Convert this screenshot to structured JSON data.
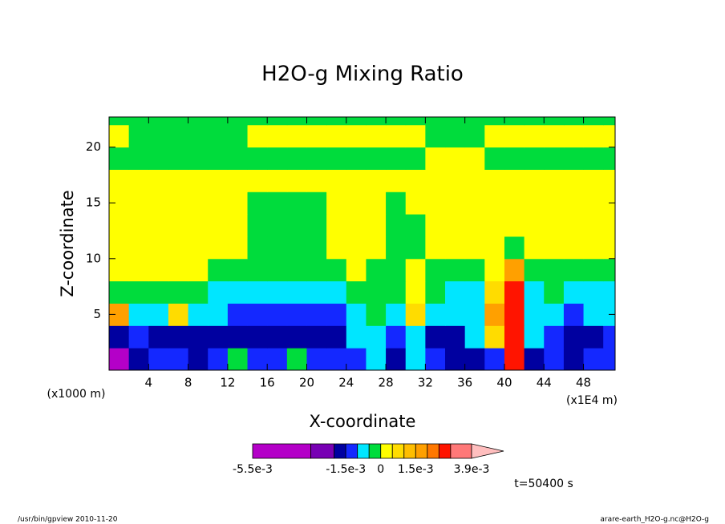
{
  "chart_data": {
    "type": "contour",
    "title": "H2O-g Mixing Ratio",
    "x_label": "X-coordinate",
    "y_label": "Z-coordinate",
    "x_unit": "(x1000 m)",
    "x_scale_note": "(x1E4 m)",
    "time_label": "t=50400 s",
    "footer_left": "/usr/bin/gpview  2010-11-20",
    "footer_right": "arare-earth_H2O-g.nc@H2O-g",
    "xlim": [
      0,
      51.2
    ],
    "ylim": [
      0,
      22.7
    ],
    "xticks": [
      4,
      8,
      12,
      16,
      20,
      24,
      28,
      32,
      36,
      40,
      44,
      48
    ],
    "yticks": [
      5,
      10,
      15,
      20
    ],
    "x": [
      1,
      3,
      5,
      7,
      9,
      11,
      13,
      15,
      17,
      19,
      21,
      23,
      25,
      27,
      29,
      31,
      33,
      35,
      37,
      39,
      41,
      43,
      45,
      47,
      49,
      51
    ],
    "z": [
      1,
      3,
      5,
      7,
      9,
      11,
      13,
      15,
      17,
      19,
      21,
      23
    ],
    "levels": [
      -0.0055,
      -0.003,
      -0.002,
      -0.0015,
      -0.001,
      -0.0005,
      0,
      0.0005,
      0.001,
      0.0015,
      0.002,
      0.0025,
      0.003,
      0.0039
    ],
    "colors": [
      "#b400c8",
      "#7800b4",
      "#0000a0",
      "#1428ff",
      "#00e6ff",
      "#00dc3c",
      "#ffff00",
      "#ffdc00",
      "#ffbe00",
      "#ffa000",
      "#ff7800",
      "#ff1400",
      "#ff7878",
      "#ffbebe"
    ],
    "colorbar_ticks": [
      {
        "value": -0.0055,
        "label": "-5.5e-3"
      },
      {
        "value": -0.0015,
        "label": "-1.5e-3"
      },
      0,
      {
        "value": 0.0015,
        "label": "1.5e-3"
      },
      {
        "value": 0.0039,
        "label": "3.9e-3"
      }
    ],
    "values": [
      [
        -0.004,
        -0.0017,
        -0.0012,
        -0.0012,
        -0.0017,
        -0.0012,
        -0.0002,
        -0.0012,
        -0.0012,
        -0.0002,
        -0.0012,
        -0.0012,
        -0.0012,
        -0.0007,
        -0.0017,
        -0.0007,
        -0.0012,
        -0.0017,
        -0.0017,
        -0.0012,
        0.0027,
        -0.0017,
        -0.0012,
        -0.0017,
        -0.0012,
        -0.0012
      ],
      [
        -0.0017,
        -0.0012,
        -0.0017,
        -0.0017,
        -0.0017,
        -0.0017,
        -0.0017,
        -0.0017,
        -0.0017,
        -0.0017,
        -0.0017,
        -0.0017,
        -0.0007,
        -0.0007,
        -0.0012,
        -0.0007,
        -0.0017,
        -0.0017,
        -0.0007,
        0.0007,
        0.0027,
        -0.0007,
        -0.0012,
        -0.0017,
        -0.0017,
        -0.0012
      ],
      [
        0.0017,
        -0.0007,
        -0.0007,
        0.0007,
        -0.0007,
        -0.0007,
        -0.0012,
        -0.0012,
        -0.0012,
        -0.0012,
        -0.0012,
        -0.0012,
        -0.0007,
        -0.0002,
        -0.0007,
        0.0007,
        -0.0007,
        -0.0007,
        -0.0007,
        0.0017,
        0.0027,
        -0.0007,
        -0.0007,
        -0.0012,
        -0.0007,
        -0.0007
      ],
      [
        -0.0002,
        -0.0002,
        -0.0002,
        -0.0002,
        -0.0002,
        -0.0007,
        -0.0007,
        -0.0007,
        -0.0007,
        -0.0007,
        -0.0007,
        -0.0007,
        -0.0002,
        -0.0002,
        -0.0002,
        0.0002,
        -0.0002,
        -0.0007,
        -0.0007,
        0.0007,
        0.0027,
        -0.0007,
        -0.0002,
        -0.0007,
        -0.0007,
        -0.0007
      ],
      [
        0.0002,
        0.0002,
        0.0002,
        0.0002,
        0.0002,
        -0.0002,
        -0.0002,
        -0.0002,
        -0.0002,
        -0.0002,
        -0.0002,
        -0.0002,
        0.0002,
        -0.0002,
        -0.0002,
        0.0002,
        -0.0002,
        -0.0002,
        -0.0002,
        0.0002,
        0.0017,
        -0.0002,
        -0.0002,
        -0.0002,
        -0.0002,
        -0.0002
      ],
      [
        0.0002,
        0.0002,
        0.0002,
        0.0002,
        0.0002,
        0.0002,
        0.0002,
        -0.0002,
        -0.0002,
        -0.0002,
        -0.0002,
        0.0002,
        0.0002,
        0.0002,
        -0.0002,
        -0.0002,
        0.0002,
        0.0002,
        0.0002,
        0.0002,
        -0.0002,
        0.0002,
        0.0002,
        0.0002,
        0.0002,
        0.0002
      ],
      [
        0.0002,
        0.0002,
        0.0002,
        0.0002,
        0.0002,
        0.0002,
        0.0002,
        -0.0002,
        -0.0002,
        -0.0002,
        -0.0002,
        0.0002,
        0.0002,
        0.0002,
        -0.0002,
        -0.0002,
        0.0002,
        0.0002,
        0.0002,
        0.0002,
        0.0002,
        0.0002,
        0.0002,
        0.0002,
        0.0002,
        0.0002
      ],
      [
        0.0002,
        0.0002,
        0.0002,
        0.0002,
        0.0002,
        0.0002,
        0.0002,
        -0.0002,
        -0.0002,
        -0.0002,
        -0.0002,
        0.0002,
        0.0002,
        0.0002,
        -0.0002,
        0.0002,
        0.0002,
        0.0002,
        0.0002,
        0.0002,
        0.0002,
        0.0002,
        0.0002,
        0.0002,
        0.0002,
        0.0002
      ],
      [
        0.0002,
        0.0002,
        0.0002,
        0.0002,
        0.0002,
        0.0002,
        0.0002,
        0.0002,
        0.0002,
        0.0002,
        0.0002,
        0.0002,
        0.0002,
        0.0002,
        0.0002,
        0.0002,
        0.0002,
        0.0002,
        0.0002,
        0.0002,
        0.0002,
        0.0002,
        0.0002,
        0.0002,
        0.0002,
        0.0002
      ],
      [
        -0.0002,
        -0.0002,
        -0.0002,
        -0.0002,
        -0.0002,
        -0.0002,
        -0.0002,
        -0.0002,
        -0.0002,
        -0.0002,
        -0.0002,
        -0.0002,
        -0.0002,
        -0.0002,
        -0.0002,
        -0.0002,
        0.0002,
        0.0002,
        0.0002,
        -0.0002,
        -0.0002,
        -0.0002,
        -0.0002,
        -0.0002,
        -0.0002,
        -0.0002
      ],
      [
        0.0002,
        -0.0002,
        -0.0002,
        -0.0002,
        -0.0002,
        -0.0002,
        -0.0002,
        0.0002,
        0.0002,
        0.0002,
        0.0002,
        0.0002,
        0.0002,
        0.0002,
        0.0002,
        0.0002,
        -0.0002,
        -0.0002,
        -0.0002,
        0.0002,
        0.0002,
        0.0002,
        0.0002,
        0.0002,
        0.0002,
        0.0002
      ],
      [
        -0.0002,
        -0.0002,
        -0.0002,
        -0.0002,
        -0.0002,
        -0.0002,
        -0.0002,
        -0.0002,
        -0.0002,
        -0.0002,
        -0.0002,
        -0.0002,
        -0.0002,
        -0.0002,
        -0.0002,
        -0.0002,
        -0.0002,
        -0.0002,
        -0.0002,
        -0.0002,
        -0.0002,
        -0.0002,
        -0.0002,
        -0.0002,
        -0.0002,
        -0.0002
      ]
    ]
  }
}
